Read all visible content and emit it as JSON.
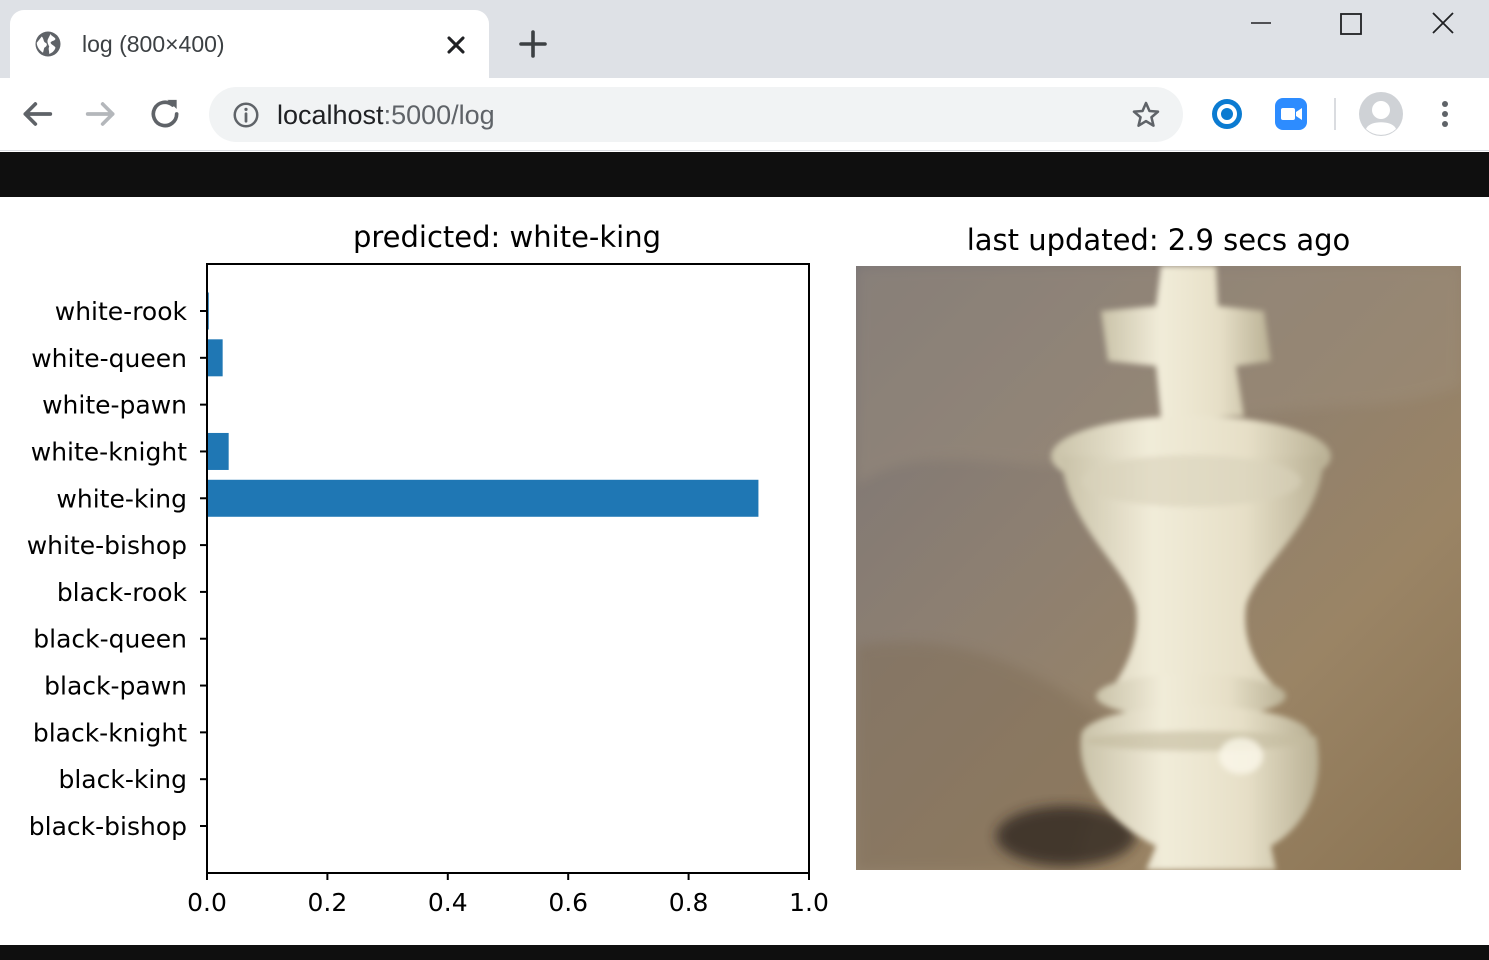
{
  "browser": {
    "tab": {
      "title": "log (800×400)",
      "icon": "globe-icon",
      "close_icon": "close-icon"
    },
    "new_tab_icon": "plus-icon",
    "window_controls": [
      "minimize-icon",
      "maximize-icon",
      "close-icon"
    ],
    "nav": [
      "back-arrow-icon",
      "forward-arrow-icon",
      "reload-icon"
    ],
    "address": {
      "host": "localhost",
      "path": ":5000/log",
      "info_icon": "info-icon",
      "bookmark_icon": "star-icon"
    },
    "extensions": [
      "circle-extension-icon",
      "video-camera-extension-icon"
    ],
    "profile_icon": "avatar-icon",
    "menu_icon": "kebab-menu-icon"
  },
  "colors": {
    "bar": "#1f77b4",
    "tab_strip": "#dee1e6",
    "omnibox": "#f1f3f4",
    "page_bar": "#0f0f0f"
  },
  "chart_data": {
    "type": "bar",
    "orientation": "horizontal",
    "title": "predicted: white-king",
    "categories": [
      "white-rook",
      "white-queen",
      "white-pawn",
      "white-knight",
      "white-king",
      "white-bishop",
      "black-rook",
      "black-queen",
      "black-pawn",
      "black-knight",
      "black-king",
      "black-bishop"
    ],
    "values": [
      0.003,
      0.026,
      0.0,
      0.036,
      0.916,
      0.0,
      0.0,
      0.0,
      0.0,
      0.0,
      0.0,
      0.0
    ],
    "xlim": [
      0.0,
      1.0
    ],
    "xticks": [
      "0.0",
      "0.2",
      "0.4",
      "0.6",
      "0.8",
      "1.0"
    ],
    "xlabel": "",
    "ylabel": "",
    "grid": false,
    "legend": "none"
  },
  "camera": {
    "title": "last updated: 2.9 secs ago",
    "subject": "white-king-chess-piece-photo"
  }
}
